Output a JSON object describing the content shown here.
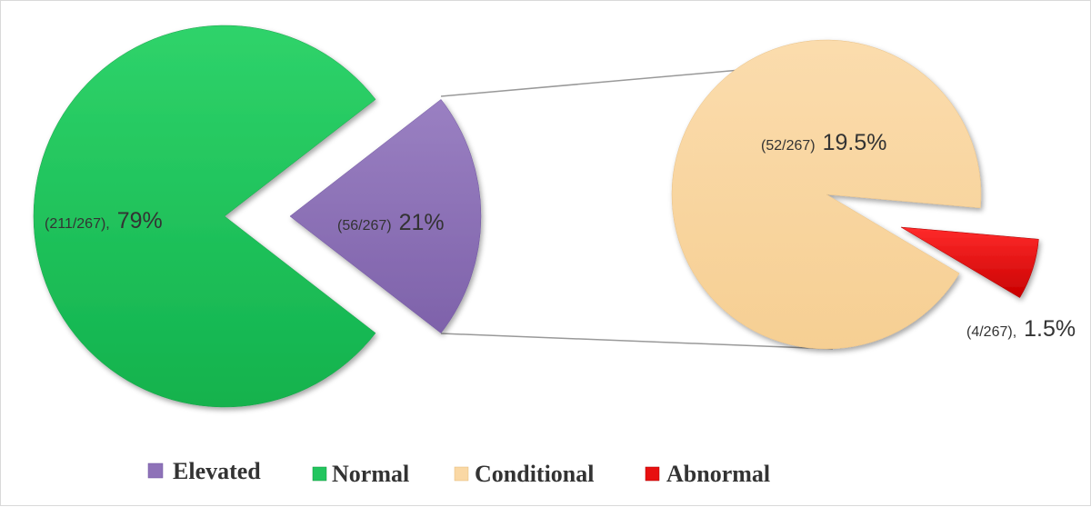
{
  "chart_data": {
    "type": "pie",
    "subtype": "pie-of-pie",
    "total": 267,
    "main_pie": {
      "slices": [
        {
          "key": "normal",
          "name": "Normal",
          "count": 211,
          "percent": 79,
          "count_text": "(211/267),",
          "percent_text": "79%",
          "color": "#22c55e"
        },
        {
          "key": "elevated",
          "name": "Elevated",
          "count": 56,
          "percent": 21,
          "count_text": "(56/267)",
          "percent_text": "21%",
          "color": "#8e72b8"
        }
      ]
    },
    "secondary_pie": {
      "breaks_down": "Elevated",
      "slices": [
        {
          "key": "conditional",
          "name": "Conditional",
          "count": 52,
          "percent": 19.5,
          "count_text": "(52/267)",
          "percent_text": "19.5%",
          "color": "#fad8a4"
        },
        {
          "key": "abnormal",
          "name": "Abnormal",
          "count": 4,
          "percent": 1.5,
          "count_text": "(4/267),",
          "percent_text": "1.5%",
          "color": "#e81010"
        }
      ]
    },
    "legend": {
      "placement": "bottom",
      "items": [
        {
          "label": "Elevated",
          "color": "#8e72b8"
        },
        {
          "label": "Normal",
          "color": "#22c55e"
        },
        {
          "label": "Conditional",
          "color": "#fad8a4"
        },
        {
          "label": "Abnormal",
          "color": "#e81010"
        }
      ]
    }
  }
}
